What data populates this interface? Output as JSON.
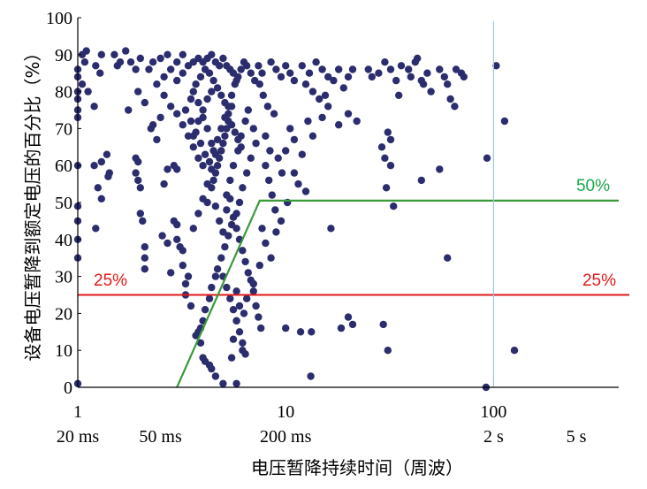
{
  "chart_data": {
    "type": "scatter",
    "xlabel": "电压暂降持续时间（周波）",
    "ylabel": "设备电压暂降到额定电压的百分比（%）",
    "x_scale": "log",
    "xlim": [
      1,
      400
    ],
    "ylim": [
      0,
      100
    ],
    "y_ticks": [
      "0",
      "10",
      "20",
      "30",
      "40",
      "50",
      "60",
      "70",
      "80",
      "90",
      "100"
    ],
    "x_ticks": [
      {
        "x": 1,
        "label": "1"
      },
      {
        "x": 10,
        "label": "10"
      },
      {
        "x": 100,
        "label": "100"
      }
    ],
    "x_time_labels": [
      {
        "x": 1,
        "label": "20 ms"
      },
      {
        "x": 2.5,
        "label": "50 ms"
      },
      {
        "x": 10,
        "label": "200 ms"
      },
      {
        "x": 100,
        "label": "2 s"
      },
      {
        "x": 250,
        "label": "5 s"
      }
    ],
    "marker_color": "#2b2d6e",
    "colors": {
      "green_line": "#3a9a3a",
      "red_line": "#e01b1b",
      "blue_line": "#9cc8ea",
      "green_text": "#1aa84a",
      "red_text": "#e01b1b"
    },
    "reference_lines": [
      {
        "type": "hline",
        "y": 25,
        "color": "#e01b1b",
        "label": "25%",
        "label_positions": [
          "left",
          "right"
        ]
      },
      {
        "type": "polyline",
        "color": "#3a9a3a",
        "label": "50%",
        "points": [
          [
            3,
            0
          ],
          [
            7.5,
            50.5
          ],
          [
            400,
            50.5
          ]
        ]
      },
      {
        "type": "vline",
        "x": 100,
        "color": "#9cc8ea"
      }
    ],
    "points": [
      [
        1.0,
        86
      ],
      [
        1.0,
        84
      ],
      [
        1.0,
        80
      ],
      [
        1.0,
        78
      ],
      [
        1.0,
        75
      ],
      [
        1.0,
        73
      ],
      [
        1.0,
        60
      ],
      [
        1.0,
        49
      ],
      [
        1.0,
        45
      ],
      [
        1.0,
        40
      ],
      [
        1.0,
        35
      ],
      [
        1.0,
        1
      ],
      [
        1.05,
        90
      ],
      [
        1.08,
        88
      ],
      [
        1.1,
        91
      ],
      [
        1.05,
        82
      ],
      [
        1.12,
        80
      ],
      [
        1.2,
        76
      ],
      [
        1.22,
        87
      ],
      [
        1.3,
        90
      ],
      [
        1.28,
        85
      ],
      [
        1.3,
        61
      ],
      [
        1.2,
        60
      ],
      [
        1.25,
        54
      ],
      [
        1.3,
        51
      ],
      [
        1.22,
        43
      ],
      [
        1.38,
        63
      ],
      [
        1.42,
        58
      ],
      [
        1.4,
        57
      ],
      [
        1.55,
        87
      ],
      [
        1.5,
        90
      ],
      [
        1.6,
        88
      ],
      [
        1.7,
        91
      ],
      [
        1.8,
        88
      ],
      [
        1.9,
        86
      ],
      [
        2.0,
        89
      ],
      [
        1.75,
        75
      ],
      [
        1.95,
        80
      ],
      [
        2.1,
        77
      ],
      [
        1.9,
        62
      ],
      [
        1.95,
        61
      ],
      [
        1.9,
        58
      ],
      [
        1.95,
        56
      ],
      [
        2.0,
        54
      ],
      [
        2.0,
        47
      ],
      [
        2.05,
        45
      ],
      [
        2.1,
        38
      ],
      [
        2.1,
        35
      ],
      [
        2.1,
        32
      ],
      [
        2.25,
        70
      ],
      [
        2.3,
        71
      ],
      [
        2.5,
        73
      ],
      [
        2.4,
        67
      ],
      [
        2.6,
        55
      ],
      [
        2.55,
        41
      ],
      [
        2.7,
        39
      ],
      [
        2.8,
        31
      ],
      [
        2.7,
        59
      ],
      [
        2.9,
        60
      ],
      [
        3.0,
        59
      ],
      [
        2.9,
        45
      ],
      [
        3.0,
        44
      ],
      [
        3.0,
        40
      ],
      [
        3.1,
        38
      ],
      [
        3.2,
        37
      ],
      [
        3.2,
        33
      ],
      [
        3.3,
        25
      ],
      [
        3.5,
        22
      ],
      [
        3.4,
        30
      ],
      [
        3.3,
        28
      ],
      [
        3.7,
        14
      ],
      [
        3.8,
        15
      ],
      [
        4.0,
        8
      ],
      [
        3.9,
        12
      ],
      [
        4.1,
        7
      ],
      [
        4.3,
        6
      ],
      [
        4.4,
        5
      ],
      [
        4.6,
        3
      ],
      [
        5.0,
        1
      ],
      [
        5.8,
        1
      ],
      [
        5.5,
        8
      ],
      [
        6.2,
        10
      ],
      [
        5.6,
        13
      ],
      [
        5.8,
        18
      ],
      [
        6.3,
        20
      ],
      [
        6.0,
        22
      ],
      [
        6.5,
        24
      ],
      [
        5.8,
        26
      ],
      [
        7.0,
        28
      ],
      [
        7.5,
        33
      ],
      [
        8.5,
        35
      ],
      [
        8.0,
        39
      ],
      [
        7.7,
        43
      ],
      [
        9.0,
        42
      ],
      [
        9.5,
        45
      ],
      [
        10.2,
        50
      ],
      [
        11.5,
        55
      ],
      [
        12.5,
        53
      ],
      [
        11.0,
        58
      ],
      [
        10.0,
        16
      ],
      [
        11.8,
        15
      ],
      [
        13.3,
        15
      ],
      [
        13.2,
        3
      ],
      [
        10.5,
        70
      ],
      [
        11.0,
        67
      ],
      [
        12.0,
        63
      ],
      [
        12.8,
        72
      ],
      [
        13.5,
        68
      ],
      [
        15.0,
        73
      ],
      [
        16.0,
        76
      ],
      [
        18.0,
        71
      ],
      [
        20.0,
        74
      ],
      [
        22.0,
        72
      ],
      [
        16.5,
        43
      ],
      [
        18.5,
        16
      ],
      [
        20.0,
        19
      ],
      [
        21.0,
        17
      ],
      [
        29.5,
        17
      ],
      [
        31.0,
        10
      ],
      [
        31.0,
        69
      ],
      [
        32.0,
        67
      ],
      [
        29.0,
        65
      ],
      [
        30.0,
        62
      ],
      [
        32.0,
        60
      ],
      [
        30.5,
        54
      ],
      [
        33.0,
        49
      ],
      [
        45.0,
        56
      ],
      [
        55.0,
        59
      ],
      [
        60.0,
        35
      ],
      [
        93.0,
        62
      ],
      [
        103.0,
        87
      ],
      [
        113.0,
        72
      ],
      [
        126.0,
        10
      ],
      [
        92.0,
        0
      ],
      [
        35.0,
        79
      ],
      [
        39.0,
        86
      ],
      [
        42.0,
        88
      ],
      [
        45.0,
        83
      ],
      [
        48.0,
        85
      ],
      [
        50.0,
        80
      ],
      [
        55.0,
        86
      ],
      [
        58.0,
        84
      ],
      [
        60.0,
        82
      ],
      [
        62.0,
        78
      ],
      [
        65.0,
        76
      ],
      [
        66.0,
        86
      ],
      [
        70.0,
        85
      ],
      [
        72.0,
        84
      ],
      [
        25.0,
        86
      ],
      [
        26.0,
        84
      ],
      [
        28.0,
        85
      ],
      [
        30.0,
        88
      ],
      [
        32.0,
        86
      ],
      [
        34.0,
        83
      ],
      [
        36.0,
        87
      ],
      [
        40.0,
        84
      ],
      [
        43.0,
        89
      ],
      [
        46.0,
        82
      ],
      [
        12.0,
        87
      ],
      [
        13.0,
        85
      ],
      [
        14.0,
        88
      ],
      [
        15.0,
        86
      ],
      [
        16.0,
        84
      ],
      [
        17.0,
        83
      ],
      [
        18.0,
        86
      ],
      [
        19.0,
        81
      ],
      [
        20.0,
        84
      ],
      [
        21.0,
        86
      ],
      [
        12.5,
        82
      ],
      [
        13.5,
        80
      ],
      [
        14.5,
        78
      ],
      [
        15.5,
        79
      ],
      [
        8.5,
        88
      ],
      [
        9.0,
        86
      ],
      [
        9.5,
        84
      ],
      [
        10.0,
        87
      ],
      [
        10.5,
        85
      ],
      [
        11.0,
        83
      ],
      [
        7.5,
        82
      ],
      [
        7.8,
        79
      ],
      [
        8.2,
        76
      ],
      [
        8.8,
        74
      ],
      [
        7.0,
        70
      ],
      [
        7.2,
        66
      ],
      [
        6.8,
        62
      ],
      [
        6.5,
        58
      ],
      [
        6.2,
        54
      ],
      [
        6.0,
        50
      ],
      [
        5.8,
        47
      ],
      [
        5.5,
        44
      ],
      [
        5.3,
        41
      ],
      [
        5.1,
        38
      ],
      [
        4.9,
        35
      ],
      [
        4.7,
        32
      ],
      [
        4.6,
        30
      ],
      [
        4.4,
        27
      ],
      [
        4.3,
        24
      ],
      [
        4.1,
        21
      ],
      [
        4.0,
        18
      ],
      [
        3.9,
        16
      ],
      [
        5.2,
        52
      ],
      [
        5.4,
        56
      ],
      [
        5.6,
        60
      ],
      [
        5.9,
        64
      ],
      [
        6.1,
        68
      ],
      [
        6.4,
        72
      ],
      [
        6.6,
        75
      ],
      [
        4.5,
        56
      ],
      [
        4.7,
        60
      ],
      [
        4.9,
        64
      ],
      [
        5.1,
        68
      ],
      [
        5.3,
        72
      ],
      [
        5.5,
        76
      ],
      [
        4.2,
        50
      ],
      [
        4.4,
        54
      ],
      [
        4.6,
        58
      ],
      [
        4.8,
        62
      ],
      [
        5.0,
        66
      ],
      [
        5.2,
        70
      ],
      [
        3.6,
        43
      ],
      [
        3.8,
        47
      ],
      [
        4.0,
        51
      ],
      [
        4.2,
        55
      ],
      [
        4.4,
        59
      ],
      [
        4.6,
        63
      ],
      [
        3.6,
        68
      ],
      [
        3.8,
        72
      ],
      [
        4.0,
        75
      ],
      [
        4.2,
        78
      ],
      [
        4.4,
        80
      ],
      [
        3.0,
        83
      ],
      [
        3.2,
        85
      ],
      [
        3.4,
        87
      ],
      [
        3.6,
        88
      ],
      [
        3.8,
        89
      ],
      [
        2.6,
        84
      ],
      [
        2.8,
        86
      ],
      [
        3.0,
        88
      ],
      [
        3.2,
        90
      ],
      [
        2.4,
        82
      ],
      [
        2.6,
        79
      ],
      [
        2.8,
        76
      ],
      [
        3.0,
        74
      ],
      [
        3.2,
        71
      ],
      [
        3.4,
        68
      ],
      [
        3.6,
        65
      ],
      [
        3.8,
        62
      ],
      [
        4.0,
        60
      ],
      [
        2.2,
        86
      ],
      [
        2.3,
        88
      ],
      [
        2.5,
        89
      ],
      [
        2.7,
        90
      ],
      [
        3.5,
        78
      ],
      [
        3.7,
        82
      ],
      [
        3.9,
        84
      ],
      [
        4.1,
        86
      ],
      [
        4.3,
        85
      ],
      [
        4.5,
        83
      ],
      [
        4.7,
        81
      ],
      [
        4.9,
        79
      ],
      [
        5.1,
        77
      ],
      [
        5.3,
        74
      ],
      [
        5.5,
        71
      ],
      [
        5.7,
        69
      ],
      [
        5.9,
        67
      ],
      [
        6.1,
        65
      ],
      [
        3.3,
        75
      ],
      [
        3.5,
        72
      ],
      [
        3.7,
        69
      ],
      [
        3.9,
        66
      ],
      [
        4.1,
        63
      ],
      [
        4.3,
        61
      ],
      [
        4.5,
        64
      ],
      [
        4.7,
        67
      ],
      [
        4.9,
        70
      ],
      [
        5.1,
        73
      ],
      [
        5.3,
        76
      ],
      [
        5.5,
        79
      ],
      [
        5.7,
        82
      ],
      [
        5.9,
        84
      ],
      [
        6.1,
        86
      ],
      [
        6.3,
        88
      ],
      [
        6.5,
        87
      ],
      [
        6.8,
        85
      ],
      [
        7.1,
        83
      ],
      [
        7.4,
        87
      ],
      [
        7.7,
        85
      ],
      [
        4.0,
        88
      ],
      [
        4.2,
        89
      ],
      [
        4.4,
        90
      ],
      [
        4.6,
        88
      ],
      [
        4.8,
        87
      ],
      [
        5.0,
        89
      ],
      [
        5.2,
        87
      ],
      [
        5.4,
        86
      ],
      [
        5.6,
        85
      ],
      [
        5.8,
        83
      ],
      [
        3.6,
        80
      ],
      [
        3.8,
        77
      ],
      [
        4.0,
        73
      ],
      [
        4.2,
        70
      ],
      [
        4.4,
        66
      ],
      [
        4.6,
        49
      ],
      [
        4.8,
        45
      ],
      [
        5.0,
        42
      ],
      [
        5.2,
        48
      ],
      [
        5.4,
        51
      ],
      [
        5.6,
        46
      ],
      [
        5.8,
        43
      ],
      [
        6.0,
        40
      ],
      [
        6.2,
        37
      ],
      [
        6.4,
        34
      ],
      [
        6.6,
        31
      ],
      [
        6.8,
        29
      ],
      [
        7.0,
        26
      ],
      [
        7.2,
        22
      ],
      [
        7.4,
        19
      ],
      [
        7.6,
        16
      ],
      [
        5.0,
        30
      ],
      [
        5.2,
        27
      ],
      [
        5.4,
        24
      ],
      [
        5.6,
        21
      ],
      [
        5.8,
        18
      ],
      [
        6.0,
        15
      ],
      [
        6.2,
        12
      ],
      [
        6.4,
        9
      ],
      [
        8.0,
        60
      ],
      [
        8.3,
        56
      ],
      [
        8.6,
        52
      ],
      [
        8.9,
        48
      ],
      [
        9.2,
        62
      ],
      [
        9.6,
        58
      ],
      [
        10.0,
        64
      ],
      [
        8.0,
        68
      ],
      [
        8.4,
        64
      ]
    ]
  }
}
